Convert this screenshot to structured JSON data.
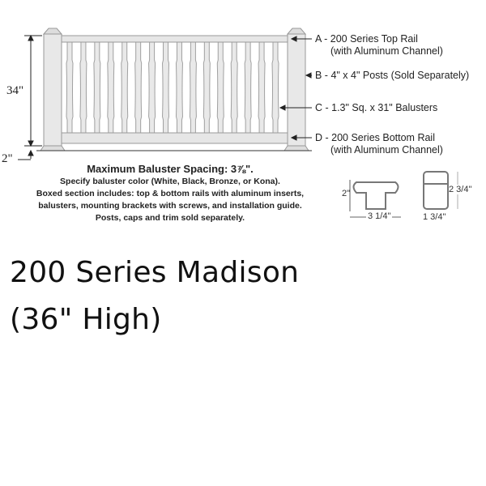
{
  "diagram": {
    "dimensions": {
      "height": "34\"",
      "gap": "2\""
    },
    "callouts": [
      {
        "line1": "A - 200 Series Top Rail",
        "line2": "(with Aluminum Channel)"
      },
      {
        "line1": "B - 4\" x 4\" Posts (Sold Separately)",
        "line2": ""
      },
      {
        "line1": "C - 1.3\" Sq. x 31\" Balusters",
        "line2": ""
      },
      {
        "line1": "D - 200 Series Bottom Rail",
        "line2": "(with Aluminum Channel)"
      }
    ],
    "baluster_count": 16,
    "notes": {
      "heading": "Maximum Baluster Spacing: 3⅞\".",
      "lines": [
        "Specify baluster color (White, Black, Bronze, or Kona).",
        "Boxed section includes: top & bottom rails with aluminum inserts,",
        "balusters, mounting brackets with screws, and installation guide.",
        "Posts, caps and trim sold separately."
      ]
    },
    "profiles": {
      "rail_height": "2\"",
      "rail_width": "3 1/4\"",
      "baluster_height": "2 3/4\"",
      "baluster_width": "1 3/4\""
    }
  },
  "product": {
    "title_line1": "200 Series Madison",
    "title_line2": "(36\" High)"
  }
}
